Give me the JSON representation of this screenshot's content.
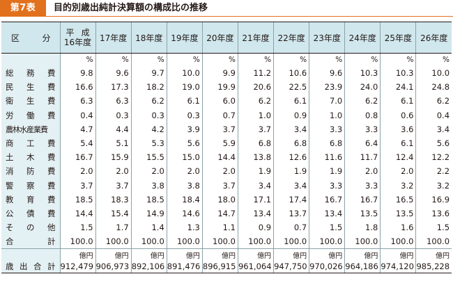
{
  "header": {
    "tag": "第7表",
    "title": "目的別歳出純計決算額の構成比の推移"
  },
  "table": {
    "label_header": [
      "区",
      "分"
    ],
    "heisei_header": {
      "l1a": "平",
      "l1b": "成",
      "l2": "16年度"
    },
    "year_headers": [
      "17年度",
      "18年度",
      "19年度",
      "20年度",
      "21年度",
      "22年度",
      "23年度",
      "24年度",
      "25年度",
      "26年度"
    ],
    "unit_row": [
      "%",
      "%",
      "%",
      "%",
      "%",
      "%",
      "%",
      "%",
      "%",
      "%",
      "%"
    ],
    "rows": [
      {
        "label": [
          "総",
          "務",
          "費"
        ],
        "values": [
          "9.8",
          "9.6",
          "9.7",
          "10.0",
          "9.9",
          "11.2",
          "10.6",
          "9.6",
          "10.3",
          "10.3",
          "10.0"
        ]
      },
      {
        "label": [
          "民",
          "生",
          "費"
        ],
        "values": [
          "16.6",
          "17.3",
          "18.2",
          "19.0",
          "19.9",
          "20.6",
          "22.5",
          "23.9",
          "24.0",
          "24.1",
          "24.8"
        ]
      },
      {
        "label": [
          "衛",
          "生",
          "費"
        ],
        "values": [
          "6.3",
          "6.3",
          "6.2",
          "6.1",
          "6.0",
          "6.2",
          "6.1",
          "7.0",
          "6.2",
          "6.1",
          "6.2"
        ]
      },
      {
        "label": [
          "労",
          "働",
          "費"
        ],
        "values": [
          "0.4",
          "0.3",
          "0.3",
          "0.3",
          "0.7",
          "1.0",
          "0.9",
          "1.0",
          "0.8",
          "0.6",
          "0.4"
        ]
      },
      {
        "label": [
          "農林水産業費"
        ],
        "tight": true,
        "values": [
          "4.7",
          "4.4",
          "4.2",
          "3.9",
          "3.7",
          "3.7",
          "3.4",
          "3.3",
          "3.3",
          "3.6",
          "3.4"
        ]
      },
      {
        "label": [
          "商",
          "工",
          "費"
        ],
        "values": [
          "5.4",
          "5.1",
          "5.3",
          "5.6",
          "5.9",
          "6.8",
          "6.8",
          "6.8",
          "6.4",
          "6.1",
          "5.6"
        ]
      },
      {
        "label": [
          "土",
          "木",
          "費"
        ],
        "values": [
          "16.7",
          "15.9",
          "15.5",
          "15.0",
          "14.4",
          "13.8",
          "12.6",
          "11.6",
          "11.7",
          "12.4",
          "12.2"
        ]
      },
      {
        "label": [
          "消",
          "防",
          "費"
        ],
        "values": [
          "2.0",
          "2.0",
          "2.0",
          "2.0",
          "2.0",
          "1.9",
          "1.9",
          "1.9",
          "2.0",
          "2.0",
          "2.2"
        ]
      },
      {
        "label": [
          "警",
          "察",
          "費"
        ],
        "values": [
          "3.7",
          "3.7",
          "3.8",
          "3.8",
          "3.7",
          "3.4",
          "3.4",
          "3.3",
          "3.3",
          "3.2",
          "3.2"
        ]
      },
      {
        "label": [
          "教",
          "育",
          "費"
        ],
        "values": [
          "18.5",
          "18.3",
          "18.5",
          "18.4",
          "18.0",
          "17.1",
          "17.4",
          "16.7",
          "16.7",
          "16.5",
          "16.9"
        ]
      },
      {
        "label": [
          "公",
          "債",
          "費"
        ],
        "values": [
          "14.4",
          "15.4",
          "14.9",
          "14.6",
          "14.7",
          "13.4",
          "13.7",
          "13.4",
          "13.5",
          "13.5",
          "13.6"
        ]
      },
      {
        "label": [
          "そ",
          "の",
          "他"
        ],
        "values": [
          "1.5",
          "1.7",
          "1.4",
          "1.3",
          "1.1",
          "0.9",
          "0.7",
          "1.5",
          "1.8",
          "1.6",
          "1.5"
        ]
      },
      {
        "label": [
          "合",
          "計"
        ],
        "values": [
          "100.0",
          "100.0",
          "100.0",
          "100.0",
          "100.0",
          "100.0",
          "100.0",
          "100.0",
          "100.0",
          "100.0",
          "100.0"
        ]
      }
    ],
    "oku_unit": [
      "億円",
      "億円",
      "億円",
      "億円",
      "億円",
      "億円",
      "億円",
      "億円",
      "億円",
      "億円",
      "億円"
    ],
    "sum_row": {
      "label": [
        "歳",
        "出",
        "合",
        "計"
      ],
      "values": [
        "912,479",
        "906,973",
        "892,106",
        "891,476",
        "896,915",
        "961,064",
        "947,750",
        "970,026",
        "964,186",
        "974,120",
        "985,228"
      ]
    }
  }
}
